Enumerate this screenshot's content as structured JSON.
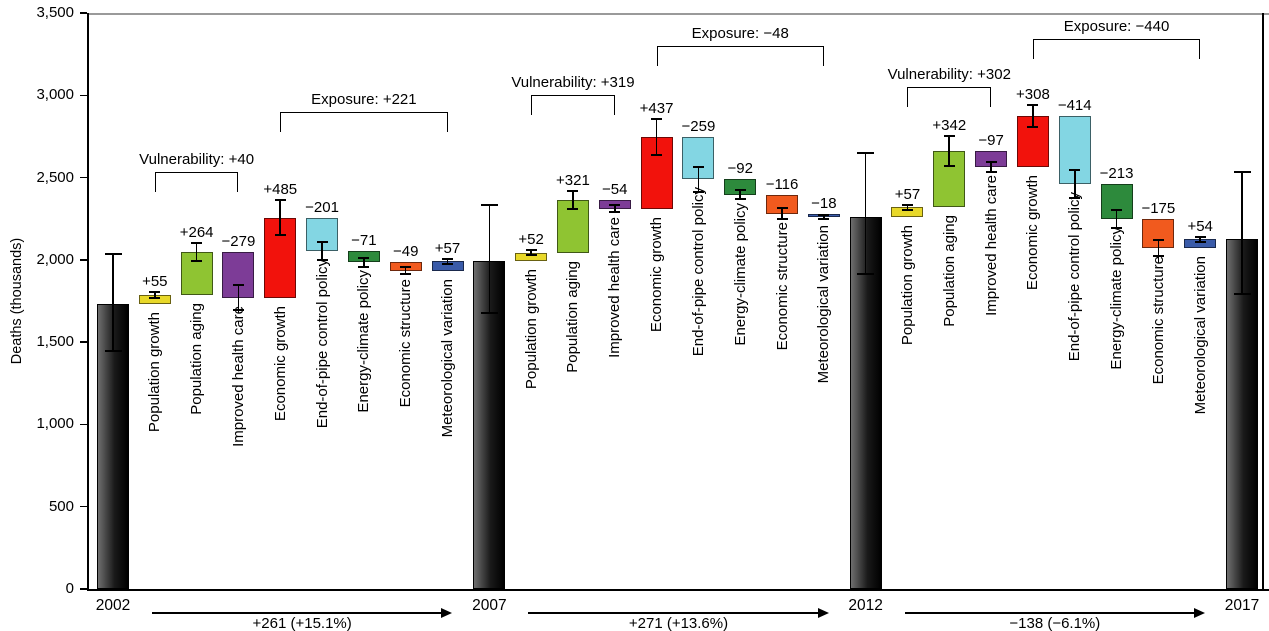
{
  "chart_data": {
    "type": "bar",
    "subtype": "waterfall-decomposition",
    "title": "",
    "ylabel": "Deaths (thousands)",
    "xlabel": "",
    "ylim": [
      0,
      3500
    ],
    "grid": false,
    "legend": "none",
    "ytick_values": [
      0,
      500,
      1000,
      1500,
      2000,
      2500,
      3000,
      3500
    ],
    "ytick_labels": [
      "0",
      "500",
      "1,000",
      "1,500",
      "2,000",
      "2,500",
      "3,000",
      "3,500"
    ],
    "year_bars": [
      {
        "year": "2002",
        "value": 1731,
        "err_lo": 1445,
        "err_hi": 2035
      },
      {
        "year": "2007",
        "value": 1992,
        "err_lo": 1680,
        "err_hi": 2333
      },
      {
        "year": "2012",
        "value": 2263,
        "err_lo": 1914,
        "err_hi": 2649
      },
      {
        "year": "2017",
        "value": 2125,
        "err_lo": 1792,
        "err_hi": 2533
      }
    ],
    "groups": [
      {
        "start_year": "2002",
        "end_year": "2007",
        "start_value": 1731,
        "vulnerability_label": "Vulnerability: +40",
        "vulnerability_value": 40,
        "exposure_label": "Exposure: +221",
        "exposure_value": 221,
        "net_label": "+261 (+15.1%)",
        "net_value": 261,
        "factors": [
          {
            "name": "Population growth",
            "value": 55,
            "label": "+55",
            "color": "#e8d829",
            "err": 20
          },
          {
            "name": "Population aging",
            "value": 264,
            "label": "+264",
            "color": "#8fc432",
            "err": 55
          },
          {
            "name": "Improved health care",
            "value": -279,
            "label": "−279",
            "color": "#7d3c97",
            "err": 75
          },
          {
            "name": "Economic growth",
            "value": 485,
            "label": "+485",
            "color": "#f2120c",
            "err": 105
          },
          {
            "name": "End-of-pipe control policy",
            "value": -201,
            "label": "−201",
            "color": "#83d6e3",
            "err": 55
          },
          {
            "name": "Energy-climate policy",
            "value": -71,
            "label": "−71",
            "color": "#2d8a3c",
            "err": 25
          },
          {
            "name": "Economic structure",
            "value": -49,
            "label": "−49",
            "color": "#f15a1e",
            "err": 20
          },
          {
            "name": "Meteorological variation",
            "value": 57,
            "label": "+57",
            "color": "#3a5ba9",
            "err": 15
          }
        ]
      },
      {
        "start_year": "2007",
        "end_year": "2012",
        "start_value": 1992,
        "vulnerability_label": "Vulnerability: +319",
        "vulnerability_value": 319,
        "exposure_label": "Exposure: −48",
        "exposure_value": -48,
        "net_label": "+271 (+13.6%)",
        "net_value": 271,
        "factors": [
          {
            "name": "Population growth",
            "value": 52,
            "label": "+52",
            "color": "#e8d829",
            "err": 15
          },
          {
            "name": "Population aging",
            "value": 321,
            "label": "+321",
            "color": "#8fc432",
            "err": 55
          },
          {
            "name": "Improved health care",
            "value": -54,
            "label": "−54",
            "color": "#7d3c97",
            "err": 20
          },
          {
            "name": "Economic growth",
            "value": 437,
            "label": "+437",
            "color": "#f2120c",
            "err": 110
          },
          {
            "name": "End-of-pipe control policy",
            "value": -259,
            "label": "−259",
            "color": "#83d6e3",
            "err": 75
          },
          {
            "name": "Energy-climate policy",
            "value": -92,
            "label": "−92",
            "color": "#2d8a3c",
            "err": 30
          },
          {
            "name": "Economic structure",
            "value": -116,
            "label": "−116",
            "color": "#f15a1e",
            "err": 35
          },
          {
            "name": "Meteorological variation",
            "value": -18,
            "label": "−18",
            "color": "#3a5ba9",
            "err": 12
          }
        ]
      },
      {
        "start_year": "2012",
        "end_year": "2017",
        "start_value": 2263,
        "vulnerability_label": "Vulnerability: +302",
        "vulnerability_value": 302,
        "exposure_label": "Exposure: −440",
        "exposure_value": -440,
        "net_label": "−138 (−6.1%)",
        "net_value": -138,
        "factors": [
          {
            "name": "Population growth",
            "value": 57,
            "label": "+57",
            "color": "#e8d829",
            "err": 15
          },
          {
            "name": "Population aging",
            "value": 342,
            "label": "+342",
            "color": "#8fc432",
            "err": 90
          },
          {
            "name": "Improved health care",
            "value": -97,
            "label": "−97",
            "color": "#7d3c97",
            "err": 30
          },
          {
            "name": "Economic growth",
            "value": 308,
            "label": "+308",
            "color": "#f2120c",
            "err": 65
          },
          {
            "name": "End-of-pipe control policy",
            "value": -414,
            "label": "−414",
            "color": "#83d6e3",
            "err": 85
          },
          {
            "name": "Energy-climate policy",
            "value": -213,
            "label": "−213",
            "color": "#2d8a3c",
            "err": 55
          },
          {
            "name": "Economic structure",
            "value": -175,
            "label": "−175",
            "color": "#f15a1e",
            "err": 50
          },
          {
            "name": "Meteorological variation",
            "value": 54,
            "label": "+54",
            "color": "#3a5ba9",
            "err": 15
          }
        ]
      }
    ]
  }
}
